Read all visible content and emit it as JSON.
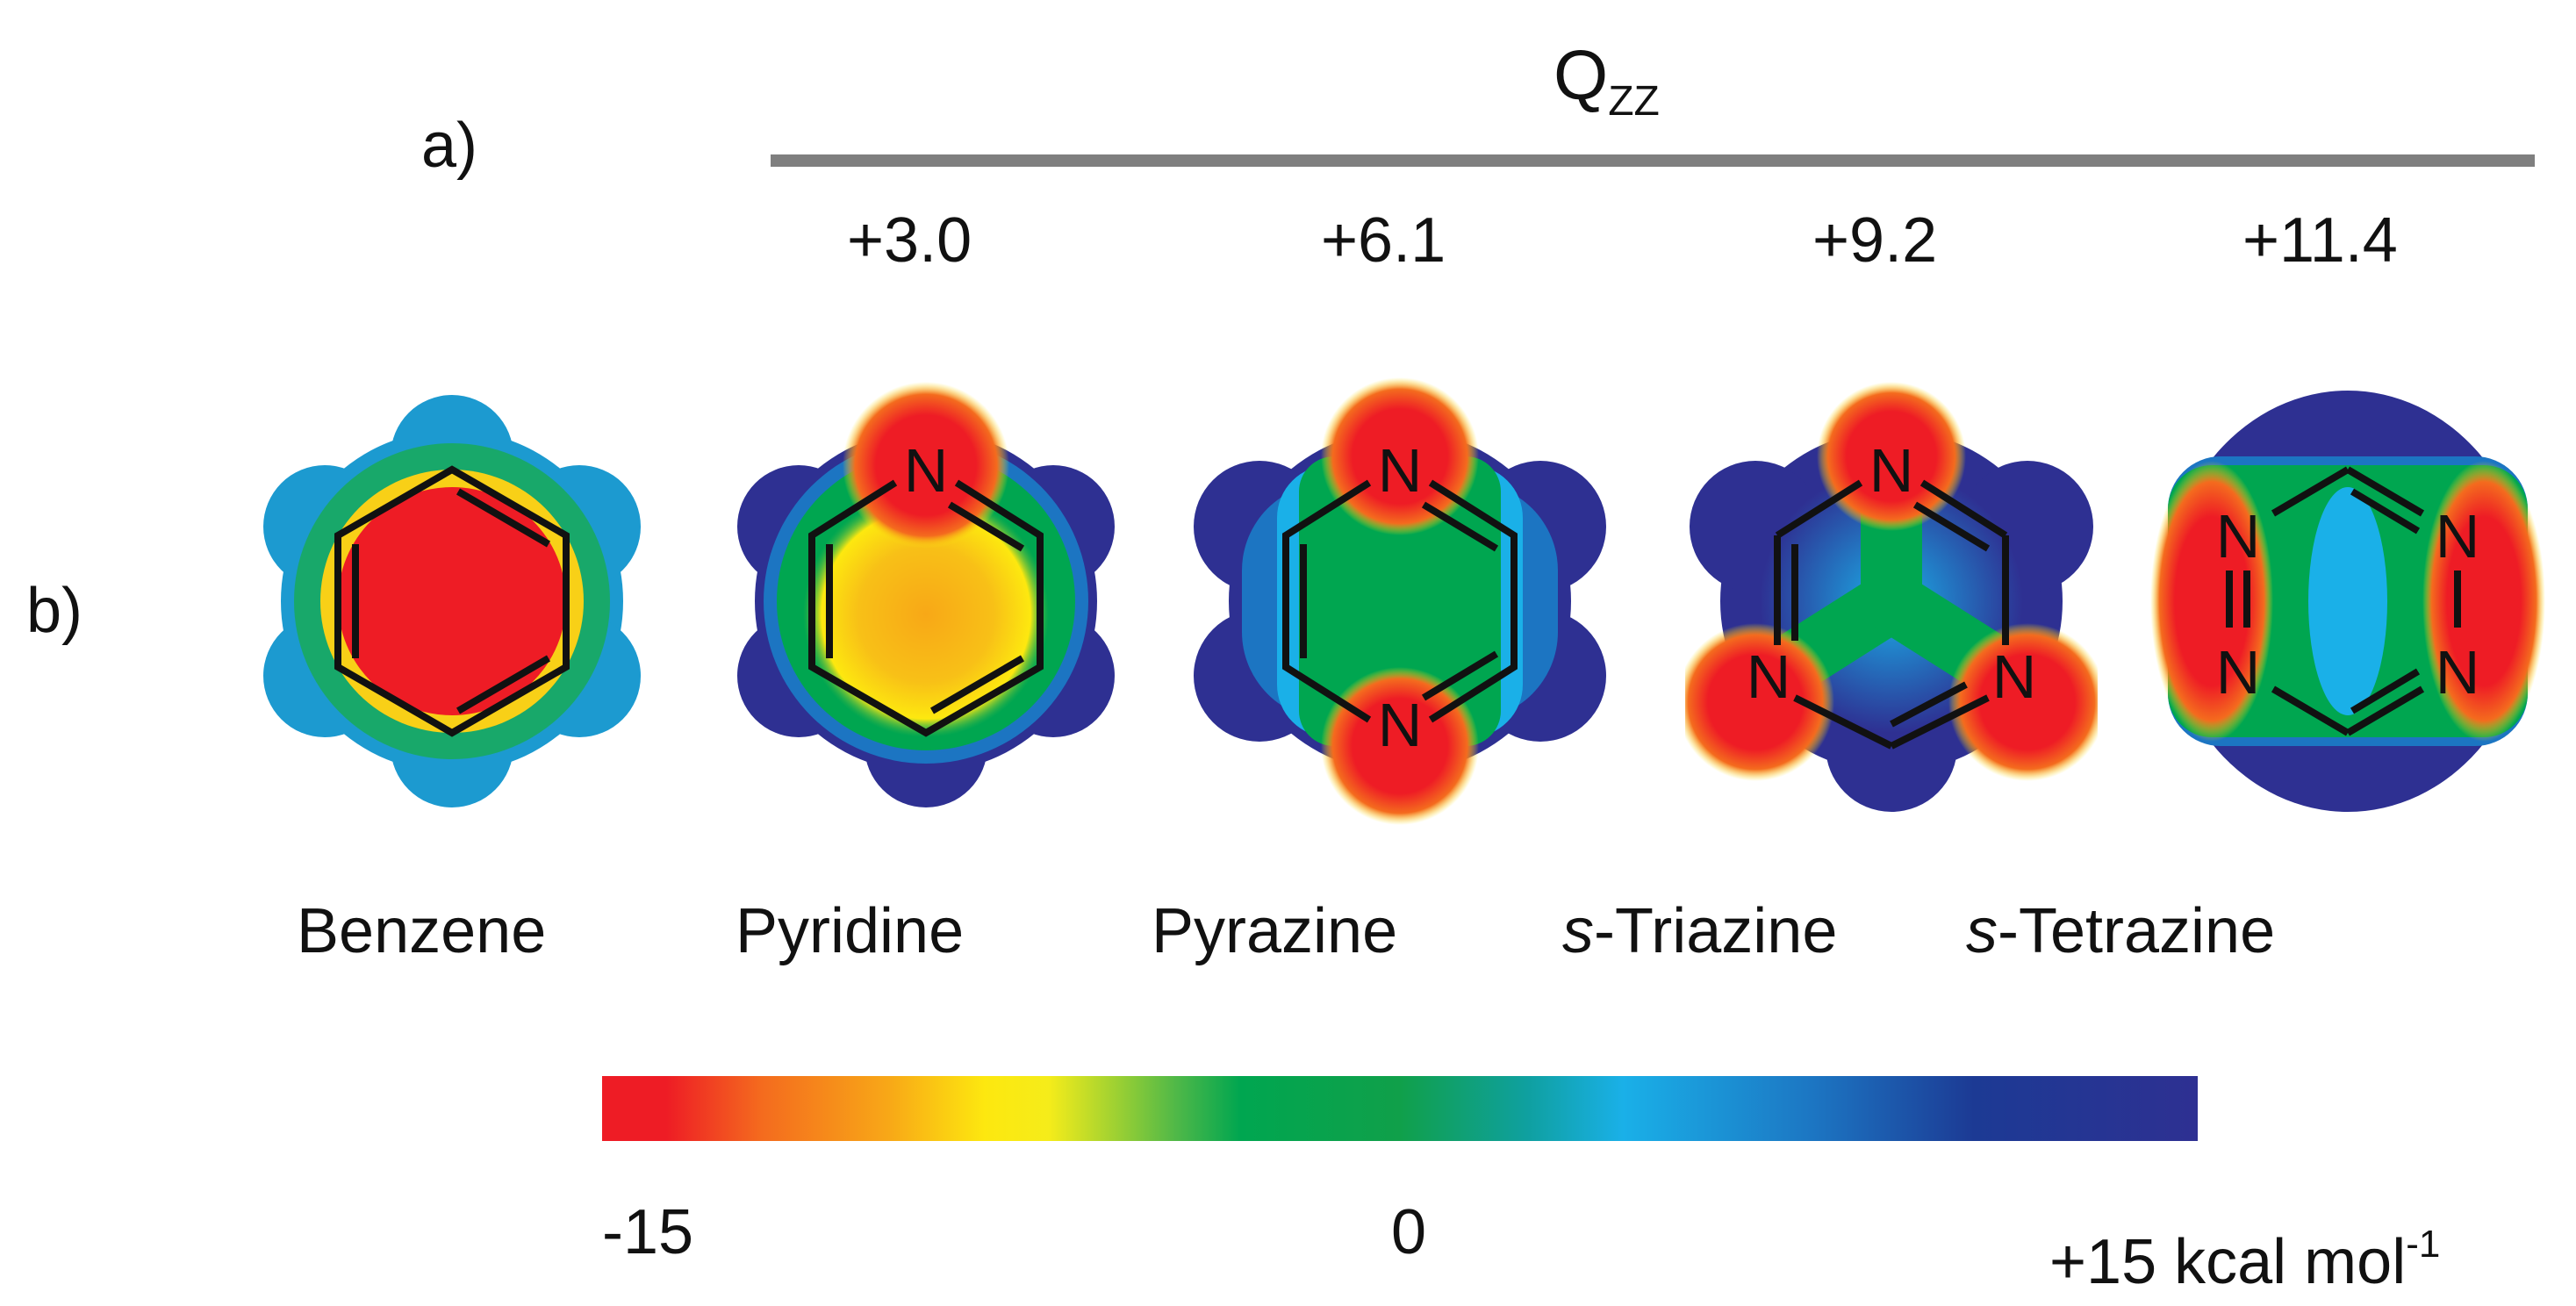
{
  "panel_a": {
    "label": "a)"
  },
  "panel_b": {
    "label": "b)"
  },
  "qzz": {
    "symbol": "Q",
    "subscript": "ZZ"
  },
  "q_values": [
    "+3.0",
    "+6.1",
    "+9.2",
    "+11.4"
  ],
  "molecules": [
    {
      "prefix": "",
      "name": "Benzene"
    },
    {
      "prefix": "",
      "name": "Pyridine"
    },
    {
      "prefix": "",
      "name": "Pyrazine"
    },
    {
      "prefix": "s",
      "name": "-Triazine"
    },
    {
      "prefix": "s",
      "name": "-Tetrazine"
    }
  ],
  "atom_label": "N",
  "scale": {
    "min": "-15",
    "mid": "0",
    "max": "+15 kcal mol",
    "max_superscript": "-1"
  },
  "colors": {
    "negative": "#ee1c25",
    "neutral": "#00a650",
    "positive": "#2e3092",
    "axis_bar": "#7f7f7f"
  }
}
